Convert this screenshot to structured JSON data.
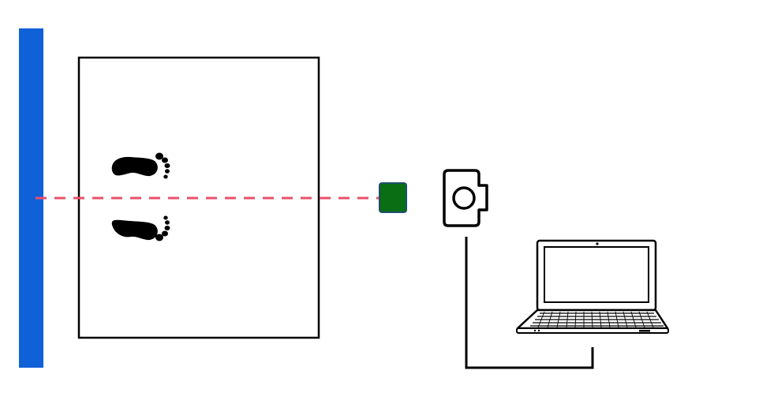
{
  "diagram": {
    "wall": {
      "icon": "wall-bar",
      "color": "#1060d8"
    },
    "platform": {
      "icon": "standing-area-rectangle",
      "border_color": "#000000"
    },
    "feet": {
      "icon": "footprints-icon",
      "color": "#000000"
    },
    "laser_line": {
      "icon": "dashed-line",
      "color": "#e8506a"
    },
    "sensor": {
      "icon": "sensor-square",
      "fill": "#0a6e14",
      "stroke": "#1d4f6a"
    },
    "camera": {
      "icon": "camera-icon",
      "color": "#000000"
    },
    "laptop": {
      "icon": "laptop-icon",
      "color": "#000000"
    },
    "cable": {
      "icon": "cable-line",
      "color": "#000000"
    }
  }
}
